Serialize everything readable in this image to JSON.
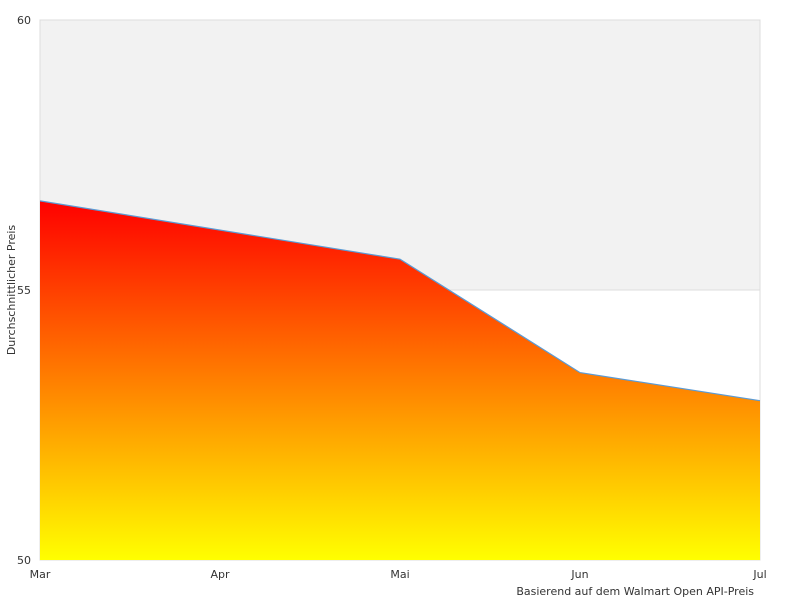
{
  "chart_data": {
    "type": "area",
    "categories": [
      "Mar",
      "Apr",
      "Mai",
      "Jun",
      "Jul"
    ],
    "x": [
      0,
      1,
      2,
      3,
      4
    ],
    "values": [
      56.65,
      null,
      55.57,
      53.47,
      52.95
    ],
    "ylabel": "Durchschnittlicher Preis",
    "ylim": [
      50,
      60
    ],
    "yticks": [
      50,
      55,
      60
    ],
    "xticks": [
      "Mar",
      "Apr",
      "Mai",
      "Jun",
      "Jul"
    ],
    "xlim": [
      0,
      4
    ],
    "grid": true,
    "note": "Basierend auf dem Walmart Open API-Preis",
    "colors": {
      "fill_top": "#ff0000",
      "fill_bottom": "#ffff00",
      "line": "#5b9bd5",
      "upper_band": "#f2f2f2",
      "frame": "#dddddd"
    }
  }
}
